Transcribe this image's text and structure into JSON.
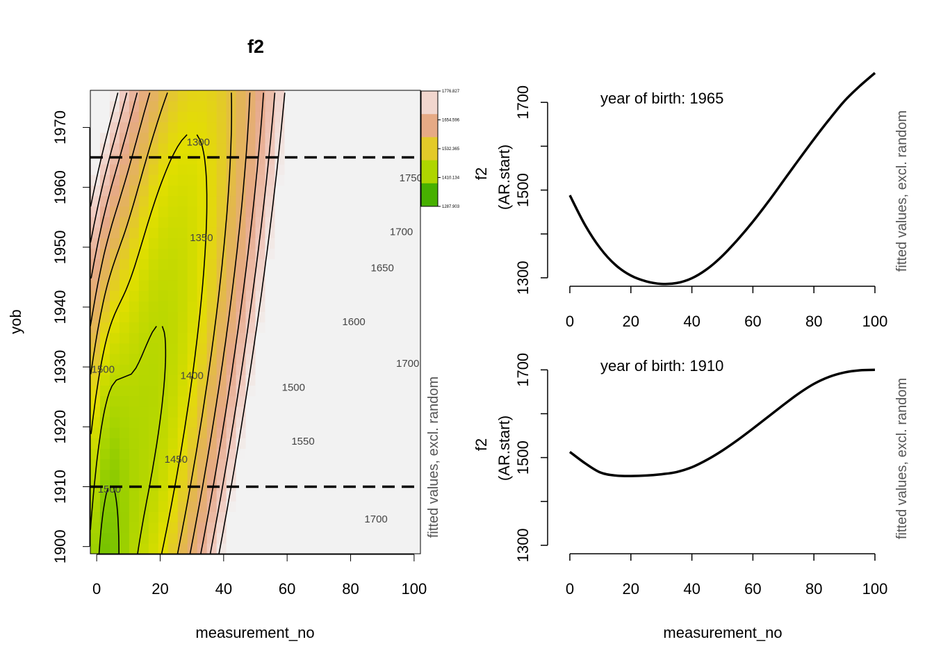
{
  "chart_data": [
    {
      "type": "heatmap",
      "title": "f2",
      "xlabel": "measurement_no",
      "ylabel": "yob",
      "side_label": "fitted values, excl. random",
      "xlim": [
        -2,
        102
      ],
      "ylim": [
        1898.8,
        1976.2
      ],
      "xticks": [
        0,
        20,
        40,
        60,
        80,
        100
      ],
      "yticks": [
        1900,
        1910,
        1920,
        1930,
        1940,
        1950,
        1960,
        1970
      ],
      "xtick_labels": [
        "0",
        "20",
        "40",
        "60",
        "80",
        "100"
      ],
      "ytick_labels": [
        "1900",
        "1910",
        "1920",
        "1930",
        "1940",
        "1950",
        "1960",
        "1970"
      ],
      "zlim": [
        1287.9,
        1776.8
      ],
      "colorbar_labels": [
        "1776.827",
        "1654.596",
        "1532.365",
        "1410.134",
        "1287.903"
      ],
      "colorbar_values": [
        1776.827,
        1654.596,
        1532.365,
        1410.134,
        1287.903
      ],
      "palette": [
        "#1a9c00",
        "#5ab900",
        "#a8d400",
        "#e3df00",
        "#e3b553",
        "#e6a98a",
        "#f0cabf",
        "#f2f2f2"
      ],
      "reference_lines_yob": [
        1965,
        1910
      ],
      "contour_labels": [
        {
          "text": "1300",
          "x": 32,
          "y": 1967
        },
        {
          "text": "1350",
          "x": 33,
          "y": 1951
        },
        {
          "text": "1400",
          "x": 30,
          "y": 1928
        },
        {
          "text": "1450",
          "x": 25,
          "y": 1914
        },
        {
          "text": "1500",
          "x": 2,
          "y": 1929
        },
        {
          "text": "1500",
          "x": 4,
          "y": 1909
        },
        {
          "text": "1500",
          "x": 62,
          "y": 1926
        },
        {
          "text": "1550",
          "x": 65,
          "y": 1917
        },
        {
          "text": "1600",
          "x": 81,
          "y": 1937
        },
        {
          "text": "1650",
          "x": 90,
          "y": 1946
        },
        {
          "text": "1700",
          "x": 96,
          "y": 1952
        },
        {
          "text": "1700",
          "x": 98,
          "y": 1930
        },
        {
          "text": "1700",
          "x": 88,
          "y": 1904
        },
        {
          "text": "1750",
          "x": 99,
          "y": 1961
        }
      ]
    },
    {
      "type": "line",
      "annotation": "year of birth: 1965",
      "xlabel": "",
      "ylabel_lines": [
        "f2",
        "(AR.start)"
      ],
      "side_label": "fitted values, excl. random",
      "xlim": [
        0,
        100
      ],
      "ylim": [
        1268,
        1775
      ],
      "xticks": [
        0,
        20,
        40,
        60,
        80,
        100
      ],
      "yticks": [
        1300,
        1400,
        1500,
        1600,
        1700
      ],
      "ytick_labels": [
        "1300",
        "",
        "1500",
        "",
        "1700"
      ],
      "x": [
        0,
        5,
        10,
        15,
        20,
        25,
        30,
        35,
        40,
        45,
        50,
        55,
        60,
        65,
        70,
        75,
        80,
        85,
        90,
        95,
        100
      ],
      "values": [
        1488,
        1420,
        1367,
        1329,
        1305,
        1292,
        1286,
        1288,
        1299,
        1320,
        1350,
        1387,
        1428,
        1473,
        1521,
        1569,
        1616,
        1661,
        1703,
        1737,
        1767
      ]
    },
    {
      "type": "line",
      "annotation": "year of birth: 1910",
      "xlabel": "measurement_no",
      "ylabel_lines": [
        "f2",
        "(AR.start)"
      ],
      "side_label": "fitted values, excl. random",
      "xlim": [
        0,
        100
      ],
      "ylim": [
        1268,
        1775
      ],
      "xticks": [
        0,
        20,
        40,
        60,
        80,
        100
      ],
      "yticks": [
        1300,
        1400,
        1500,
        1600,
        1700
      ],
      "ytick_labels": [
        "1300",
        "",
        "1500",
        "",
        "1700"
      ],
      "x": [
        0,
        5,
        10,
        15,
        20,
        25,
        30,
        35,
        40,
        45,
        50,
        55,
        60,
        65,
        70,
        75,
        80,
        85,
        90,
        95,
        100
      ],
      "values": [
        1513,
        1487,
        1466,
        1459,
        1458,
        1459,
        1462,
        1467,
        1478,
        1495,
        1516,
        1540,
        1566,
        1593,
        1620,
        1646,
        1668,
        1684,
        1694,
        1699,
        1700
      ]
    }
  ]
}
